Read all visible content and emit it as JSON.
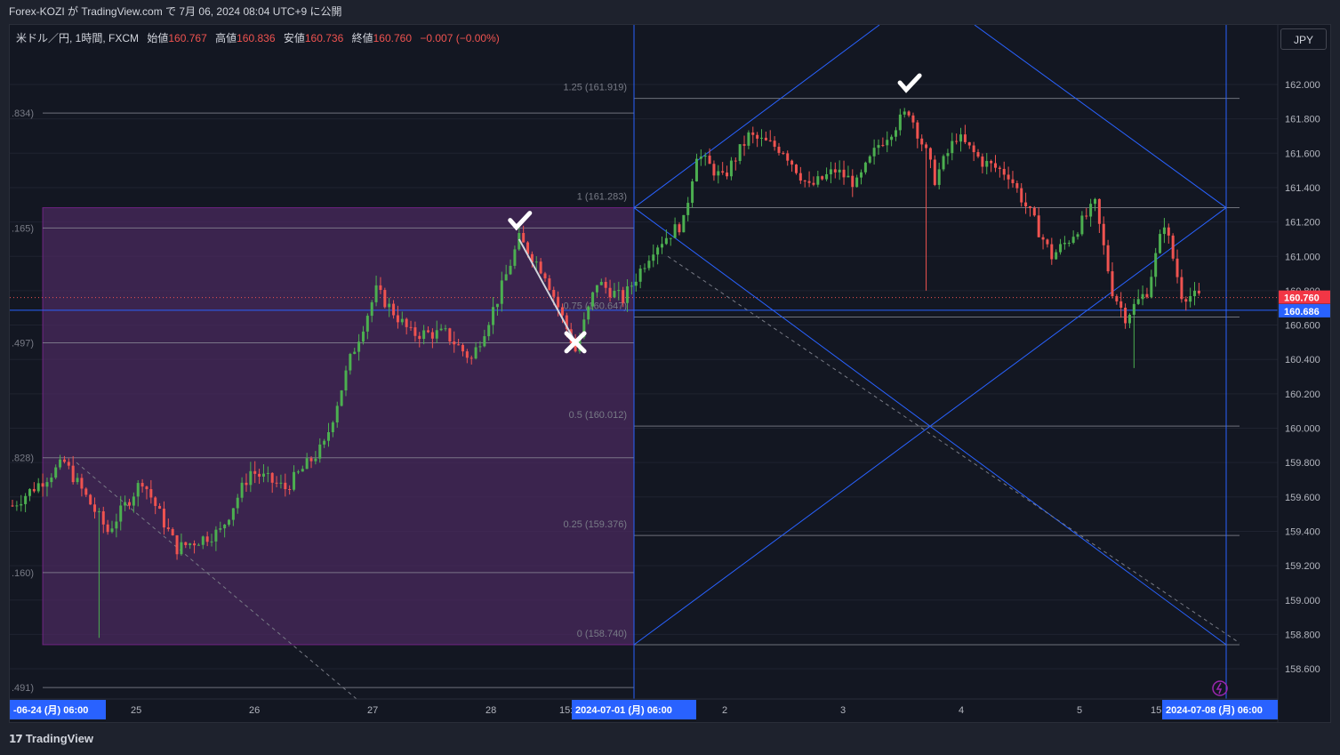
{
  "header": {
    "published_line": "Forex-KOZI が TradingView.com で 7月 06, 2024 08:04 UTC+9 に公開"
  },
  "legend": {
    "symbol": "米ドル／円, 1時間, FXCM",
    "open_label": "始値",
    "open_value": "160.767",
    "high_label": "高値",
    "high_value": "160.836",
    "low_label": "安値",
    "low_value": "160.736",
    "close_label": "終値",
    "close_value": "160.760",
    "change": "−0.007 (−0.00%)"
  },
  "currency_button": "JPY",
  "footer": {
    "brand": "TradingView"
  },
  "colors": {
    "background": "#131722",
    "up": "#26a69a",
    "up_candle": "#4caf50",
    "down": "#ef5350",
    "fib_zone": "#4a2a5e",
    "blue_line": "#2962ff",
    "price_badge_red": "#f23645",
    "price_badge_blue": "#2962ff"
  },
  "chart_data": {
    "type": "candlestick",
    "symbol": "USDJPY",
    "timeframe": "1h",
    "ylim": [
      158.45,
      162.3
    ],
    "y_ticks": [
      "162.000",
      "161.800",
      "161.600",
      "161.400",
      "161.200",
      "161.000",
      "160.800",
      "160.600",
      "160.400",
      "160.200",
      "160.000",
      "159.800",
      "159.600",
      "159.400",
      "159.200",
      "159.000",
      "158.800",
      "158.600"
    ],
    "x_ticks": [
      {
        "label": "-06-24 (月)   06:00",
        "highlight": true
      },
      {
        "label": "25"
      },
      {
        "label": "26"
      },
      {
        "label": "27"
      },
      {
        "label": "28"
      },
      {
        "label": "15:00"
      },
      {
        "label": "2024-07-01 (月)   06:00",
        "highlight": true
      },
      {
        "label": "2"
      },
      {
        "label": "3"
      },
      {
        "label": "4"
      },
      {
        "label": "5"
      },
      {
        "label": "15:00"
      },
      {
        "label": "2024-07-08 (月)   06:00",
        "highlight": true
      }
    ],
    "price_badges": [
      {
        "value": "160.760",
        "color": "#f23645"
      },
      {
        "value": "160.686",
        "color": "#2962ff"
      }
    ],
    "fib_levels_right": [
      {
        "label": "1.25 (161.919)",
        "price": 161.919
      },
      {
        "label": "1 (161.283)",
        "price": 161.283
      },
      {
        "label": "0.75 (160.647)",
        "price": 160.647
      },
      {
        "label": "0.5 (160.012)",
        "price": 160.012
      },
      {
        "label": "0.25 (159.376)",
        "price": 159.376
      },
      {
        "label": "0 (158.740)",
        "price": 158.74
      }
    ],
    "fib_levels_left": [
      {
        "label": ".834)",
        "price": 161.834
      },
      {
        "label": ".165)",
        "price": 161.165
      },
      {
        "label": ".497)",
        "price": 160.497
      },
      {
        "label": ".828)",
        "price": 159.828
      },
      {
        "label": ".160)",
        "price": 159.16
      },
      {
        "label": ".491)",
        "price": 158.491
      }
    ],
    "annotations": [
      {
        "kind": "check",
        "price": 161.2,
        "bar": 117
      },
      {
        "kind": "cross",
        "price": 160.5,
        "bar": 130
      },
      {
        "kind": "check",
        "price": 162.0,
        "bar": 207
      }
    ],
    "key_points": [
      {
        "bar": 0,
        "price": 159.55
      },
      {
        "bar": 12,
        "price": 159.8
      },
      {
        "bar": 22,
        "price": 159.4
      },
      {
        "bar": 30,
        "price": 159.7
      },
      {
        "bar": 38,
        "price": 159.3
      },
      {
        "bar": 48,
        "price": 159.4
      },
      {
        "bar": 55,
        "price": 159.75
      },
      {
        "bar": 63,
        "price": 159.65
      },
      {
        "bar": 72,
        "price": 159.9
      },
      {
        "bar": 78,
        "price": 160.4
      },
      {
        "bar": 84,
        "price": 160.8
      },
      {
        "bar": 92,
        "price": 160.55
      },
      {
        "bar": 100,
        "price": 160.55
      },
      {
        "bar": 106,
        "price": 160.4
      },
      {
        "bar": 112,
        "price": 160.75
      },
      {
        "bar": 117,
        "price": 161.1
      },
      {
        "bar": 123,
        "price": 160.9
      },
      {
        "bar": 130,
        "price": 160.45
      },
      {
        "bar": 135,
        "price": 160.85
      },
      {
        "bar": 141,
        "price": 160.75
      },
      {
        "bar": 148,
        "price": 161.05
      },
      {
        "bar": 155,
        "price": 161.2
      },
      {
        "bar": 158,
        "price": 161.6
      },
      {
        "bar": 164,
        "price": 161.45
      },
      {
        "bar": 170,
        "price": 161.7
      },
      {
        "bar": 178,
        "price": 161.62
      },
      {
        "bar": 184,
        "price": 161.4
      },
      {
        "bar": 190,
        "price": 161.5
      },
      {
        "bar": 195,
        "price": 161.42
      },
      {
        "bar": 200,
        "price": 161.65
      },
      {
        "bar": 207,
        "price": 161.85
      },
      {
        "bar": 211,
        "price": 161.6
      },
      {
        "bar": 213,
        "price": 161.45
      },
      {
        "bar": 218,
        "price": 161.7
      },
      {
        "bar": 224,
        "price": 161.55
      },
      {
        "bar": 230,
        "price": 161.48
      },
      {
        "bar": 236,
        "price": 161.2
      },
      {
        "bar": 240,
        "price": 161.0
      },
      {
        "bar": 244,
        "price": 161.1
      },
      {
        "bar": 250,
        "price": 161.3
      },
      {
        "bar": 254,
        "price": 160.8
      },
      {
        "bar": 257,
        "price": 160.65
      },
      {
        "bar": 262,
        "price": 160.8
      },
      {
        "bar": 266,
        "price": 161.2
      },
      {
        "bar": 270,
        "price": 160.78
      },
      {
        "bar": 274,
        "price": 160.76
      }
    ],
    "wicks": [
      {
        "bar": 20,
        "low": 158.78
      },
      {
        "bar": 211,
        "low": 160.8
      },
      {
        "bar": 259,
        "low": 160.35
      }
    ]
  }
}
